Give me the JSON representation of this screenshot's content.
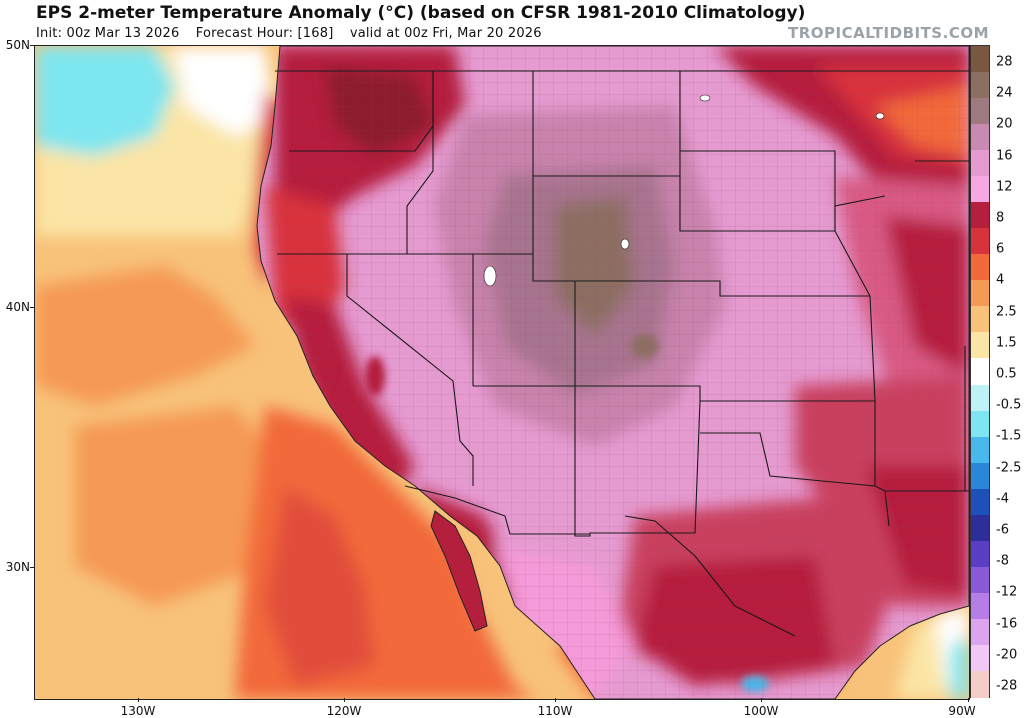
{
  "header": {
    "title": "EPS 2-meter Temperature Anomaly (°C) (based on CFSR 1981-2010 Climatology)",
    "init": "Init: 00z Mar 13 2026",
    "forecast_hour": "Forecast Hour: [168]",
    "valid": "valid at 00z Fri, Mar 20 2026"
  },
  "watermark": "TROPICALTIDBITS.COM",
  "map": {
    "lat_labels": [
      "50N",
      "40N",
      "30N"
    ],
    "lon_labels": [
      "130W",
      "120W",
      "110W",
      "100W",
      "90W"
    ],
    "region": "Western and Central United States, Northern Mexico, Eastern Pacific"
  },
  "colorbar": {
    "labels": [
      "28",
      "24",
      "20",
      "16",
      "12",
      "8",
      "6",
      "4",
      "2.5",
      "1.5",
      "0.5",
      "-0.5",
      "-1.5",
      "-2.5",
      "-4",
      "-6",
      "-8",
      "-12",
      "-16",
      "-20",
      "-28"
    ],
    "colors": [
      "#7a5740",
      "#8c6e62",
      "#9e7a80",
      "#c88ab0",
      "#e59ad0",
      "#f5a9e0",
      "#b51f3e",
      "#d8323c",
      "#f2693a",
      "#f59a55",
      "#f8c27a",
      "#fbe5a6",
      "#ffffff",
      "#bff2f6",
      "#7ee6f0",
      "#49b8ea",
      "#2a86d8",
      "#1f4fb8",
      "#2c2f9a",
      "#5a3fc4",
      "#8a5ad8",
      "#b77de6",
      "#dca3ee",
      "#f0c8f3",
      "#f6ccc8"
    ]
  }
}
